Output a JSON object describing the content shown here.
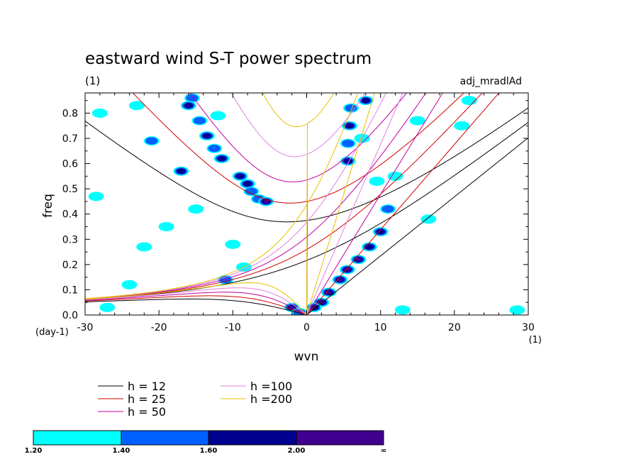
{
  "chart_data": {
    "type": "contour",
    "title": "eastward wind S-T power spectrum",
    "subtitle_left": "(1)",
    "subtitle_right": "adj_mradlAd",
    "xlabel": "wvn",
    "ylabel": "freq",
    "x_unit": "(1)",
    "y_unit": "(day-1)",
    "xlim": [
      -30,
      30
    ],
    "ylim": [
      0,
      0.88
    ],
    "x_ticks": [
      -30,
      -20,
      -10,
      0,
      10,
      20,
      30
    ],
    "x_tick_labels": [
      "-30",
      "-20",
      "-10",
      "0",
      "10",
      "20",
      "30"
    ],
    "y_ticks": [
      0,
      0.1,
      0.2,
      0.3,
      0.4,
      0.5,
      0.6,
      0.7,
      0.8
    ],
    "y_tick_labels": [
      "0.0",
      "0.1",
      "0.2",
      "0.3",
      "0.4",
      "0.5",
      "0.6",
      "0.7",
      "0.8"
    ],
    "dispersion_curves": [
      {
        "label": "h = 12",
        "h": 12,
        "color": "#000000"
      },
      {
        "label": "h = 25",
        "h": 25,
        "color": "#d00000"
      },
      {
        "label": "h = 50",
        "h": 50,
        "color": "#c000a0"
      },
      {
        "label": "h =100",
        "h": 100,
        "color": "#e080e0"
      },
      {
        "label": "h =200",
        "h": 200,
        "color": "#e8c000"
      }
    ],
    "colorbar": {
      "levels": [
        "1.20",
        "1.40",
        "1.60",
        "2.00",
        "∞"
      ],
      "colors": [
        "#00ffff",
        "#0060ff",
        "#000090",
        "#400090"
      ]
    },
    "power_blobs": [
      {
        "x": -15.5,
        "y": 0.86,
        "level": 1
      },
      {
        "x": -16.0,
        "y": 0.83,
        "level": 2
      },
      {
        "x": -14.5,
        "y": 0.77,
        "level": 1
      },
      {
        "x": -13.5,
        "y": 0.71,
        "level": 2
      },
      {
        "x": -12.5,
        "y": 0.66,
        "level": 1
      },
      {
        "x": -11.5,
        "y": 0.62,
        "level": 2
      },
      {
        "x": -9.0,
        "y": 0.55,
        "level": 2
      },
      {
        "x": -8.0,
        "y": 0.52,
        "level": 2
      },
      {
        "x": -7.5,
        "y": 0.49,
        "level": 1
      },
      {
        "x": -6.5,
        "y": 0.46,
        "level": 1
      },
      {
        "x": -5.5,
        "y": 0.45,
        "level": 3
      },
      {
        "x": -17.0,
        "y": 0.57,
        "level": 2
      },
      {
        "x": -21.0,
        "y": 0.69,
        "level": 1
      },
      {
        "x": -28.0,
        "y": 0.8,
        "level": 0
      },
      {
        "x": -23.0,
        "y": 0.83,
        "level": 0
      },
      {
        "x": -12.0,
        "y": 0.79,
        "level": 0
      },
      {
        "x": 6.0,
        "y": 0.82,
        "level": 1
      },
      {
        "x": 5.8,
        "y": 0.75,
        "level": 2
      },
      {
        "x": 5.6,
        "y": 0.68,
        "level": 1
      },
      {
        "x": 5.6,
        "y": 0.61,
        "level": 2
      },
      {
        "x": 8.0,
        "y": 0.85,
        "level": 2
      },
      {
        "x": 7.5,
        "y": 0.7,
        "level": 0
      },
      {
        "x": 9.5,
        "y": 0.53,
        "level": 0
      },
      {
        "x": 11.0,
        "y": 0.42,
        "level": 1
      },
      {
        "x": 10.0,
        "y": 0.33,
        "level": 2
      },
      {
        "x": 8.5,
        "y": 0.27,
        "level": 2
      },
      {
        "x": 7.0,
        "y": 0.22,
        "level": 3
      },
      {
        "x": 5.5,
        "y": 0.18,
        "level": 3
      },
      {
        "x": 4.5,
        "y": 0.14,
        "level": 3
      },
      {
        "x": 3.0,
        "y": 0.09,
        "level": 3
      },
      {
        "x": 2.0,
        "y": 0.05,
        "level": 3
      },
      {
        "x": 1.0,
        "y": 0.03,
        "level": 2
      },
      {
        "x": -2.0,
        "y": 0.03,
        "level": 2
      },
      {
        "x": -1.0,
        "y": 0.01,
        "level": 1
      },
      {
        "x": 12.0,
        "y": 0.55,
        "level": 0
      },
      {
        "x": 15.0,
        "y": 0.77,
        "level": 0
      },
      {
        "x": 22.0,
        "y": 0.85,
        "level": 0
      },
      {
        "x": 21.0,
        "y": 0.75,
        "level": 0
      },
      {
        "x": -28.5,
        "y": 0.47,
        "level": 0
      },
      {
        "x": -19.0,
        "y": 0.35,
        "level": 0
      },
      {
        "x": -15.0,
        "y": 0.42,
        "level": 0
      },
      {
        "x": -10.0,
        "y": 0.28,
        "level": 0
      },
      {
        "x": -24.0,
        "y": 0.12,
        "level": 0
      },
      {
        "x": -22.0,
        "y": 0.27,
        "level": 0
      },
      {
        "x": 28.5,
        "y": 0.02,
        "level": 0
      },
      {
        "x": -27.0,
        "y": 0.03,
        "level": 0
      },
      {
        "x": -11.0,
        "y": 0.14,
        "level": 1
      },
      {
        "x": 13.0,
        "y": 0.02,
        "level": 0
      },
      {
        "x": 16.5,
        "y": 0.38,
        "level": 0
      },
      {
        "x": -8.5,
        "y": 0.19,
        "level": 0
      }
    ]
  }
}
